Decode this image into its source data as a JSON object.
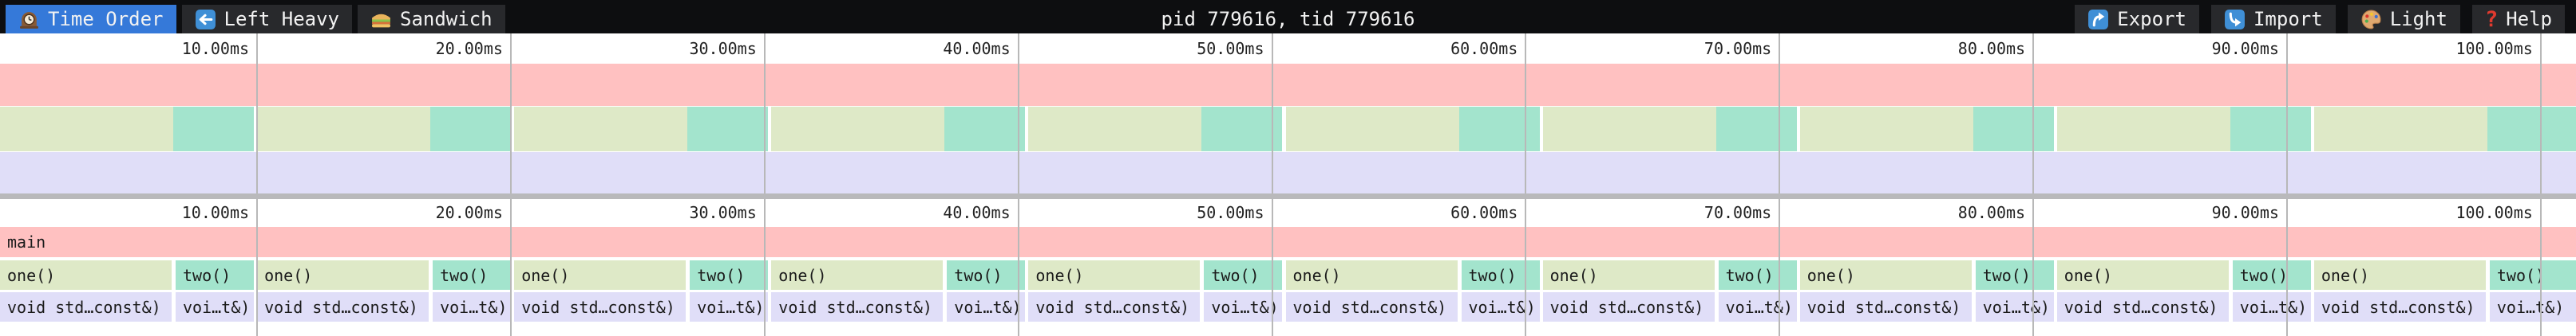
{
  "toolbar": {
    "tabs": [
      {
        "label": "Time Order",
        "icon": "clock-icon",
        "active": true
      },
      {
        "label": "Left Heavy",
        "icon": "left-arrow-icon",
        "active": false
      },
      {
        "label": "Sandwich",
        "icon": "sandwich-icon",
        "active": false
      }
    ],
    "title": "pid 779616, tid 779616",
    "actions": [
      {
        "label": "Export",
        "icon": "export-icon"
      },
      {
        "label": "Import",
        "icon": "import-icon"
      },
      {
        "label": "Light",
        "icon": "palette-icon"
      },
      {
        "label": "Help",
        "icon": "question-mark-icon"
      }
    ]
  },
  "ruler": {
    "tick_interval_ms": 10,
    "tick_labels": [
      "10.00ms",
      "20.00ms",
      "30.00ms",
      "40.00ms",
      "50.00ms",
      "60.00ms",
      "70.00ms",
      "80.00ms",
      "90.00ms",
      "100.00ms"
    ]
  },
  "flamegraph": {
    "root_label": "main",
    "visible_duration_ms": 100,
    "cycles": 10,
    "level1": [
      {
        "label": "one()",
        "approx_ms": 6.8
      },
      {
        "label": "two()",
        "approx_ms": 3.2
      }
    ],
    "level2": [
      {
        "label": "void std…const&)",
        "parent": "one()"
      },
      {
        "label": "voi…t&)",
        "parent": "two()"
      }
    ]
  },
  "colors": {
    "toolbar_bg": "#0d0e10",
    "tab_bg": "#28292c",
    "active_tab": "#3579d9",
    "frame_main": "#ffc1c1",
    "frame_one": "#dee9c7",
    "frame_two": "#a3e4cd",
    "frame_leaf": "#e0def8",
    "gridline": "#b8b8b8",
    "divider": "#b9b9bb"
  }
}
